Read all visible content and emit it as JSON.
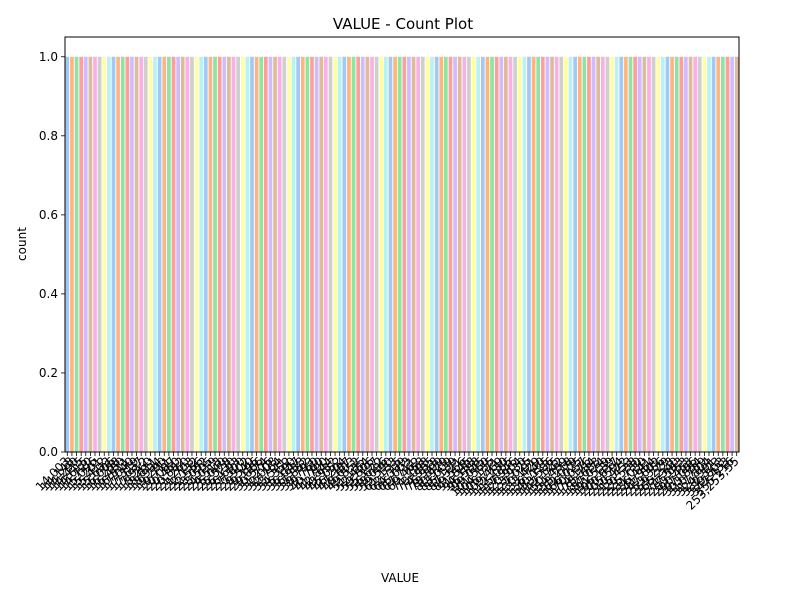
{
  "chart_data": {
    "type": "bar",
    "title": "VALUE  - Count Plot",
    "xlabel": "VALUE",
    "ylabel": "count",
    "ylim": [
      0,
      1.05
    ],
    "yticks": [
      0.0,
      0.2,
      0.4,
      0.6,
      0.8,
      1.0
    ],
    "ytick_labels": [
      "0.0",
      "0.2",
      "0.4",
      "0.6",
      "0.8",
      "1.0"
    ],
    "grid": false,
    "palette": [
      "#a1c9f4",
      "#ffb482",
      "#8de5a1",
      "#ff9f9b",
      "#d0bbff",
      "#debb9b",
      "#fab0e4",
      "#cfcfcf",
      "#fffea3",
      "#b9f2f0"
    ],
    "category_count": 146,
    "value_per_category": 1,
    "categories": [
      "14,003",
      "14,148",
      "14,290",
      "14,415",
      "14,615",
      "14,720",
      "15,096",
      "15,201",
      "15,412",
      "15,633",
      "16,006",
      "16,258",
      "16,480",
      "16,811",
      "17,040",
      "17,319",
      "17,637",
      "17,912",
      "18,260",
      "18,611",
      "18,934",
      "19,290",
      "19,711",
      "20,087",
      "20,450",
      "20,882",
      "21,260",
      "21,703",
      "22,132",
      "22,556",
      "23,052",
      "23,505",
      "24,019",
      "24,513",
      "25,040",
      "25,578",
      "26,130",
      "26,693",
      "27,300",
      "27,902",
      "28,540",
      "29,196",
      "29,866",
      "30,574",
      "31,276",
      "32,008",
      "32,764",
      "33,541",
      "34,352",
      "35,190",
      "36,047",
      "36,938",
      "37,852",
      "38,793",
      "39,760",
      "40,760",
      "41,790",
      "42,844",
      "43,932",
      "45,052",
      "46,204",
      "47,387",
      "48,603",
      "49,852",
      "51,135",
      "52,454",
      "53,806",
      "55,197",
      "56,622",
      "58,086",
      "59,590",
      "61,133",
      "62,715",
      "64,339",
      "66,003",
      "67,711",
      "69,462",
      "71,258",
      "73,098",
      "74,985",
      "76,918",
      "78,899",
      "80,929",
      "83,009",
      "85,139",
      "87,321",
      "89,556",
      "91,845",
      "94,188",
      "96,588",
      "99,045",
      "101,560",
      "104,135",
      "106,771",
      "109,469",
      "112,230",
      "115,055",
      "117,946",
      "120,904",
      "123,930",
      "127,025",
      "130,191",
      "133,429",
      "136,740",
      "140,125",
      "143,586",
      "147,125",
      "150,742",
      "154,439",
      "158,218",
      "162,079",
      "166,025",
      "170,057",
      "174,176",
      "178,384",
      "182,683",
      "187,074",
      "191,559",
      "196,139",
      "200,817",
      "205,594",
      "210,472",
      "215,453",
      "220,538",
      "225,730",
      "231,030",
      "236,441",
      "241,964",
      "247,602",
      "253,356",
      "259,229",
      "265,223",
      "271,340",
      "277,583",
      "283,953",
      "290,453",
      "297,086",
      "303,854",
      "310,759",
      "317,804",
      "324,991",
      "332,323",
      "339,803",
      "347,433",
      "355,216",
      "253,253,55"
    ]
  }
}
